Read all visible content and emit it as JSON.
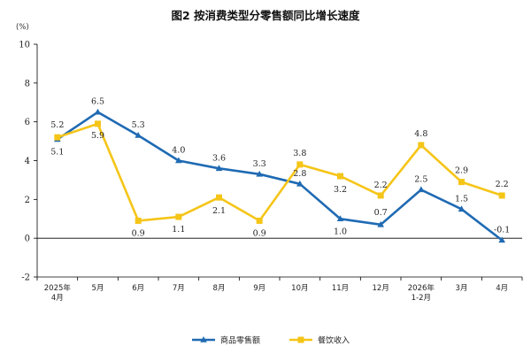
{
  "chart_data": {
    "type": "line",
    "title": "图2 按消费类型分零售额同比增长速度",
    "ylabel": "(%)",
    "xlabel": "",
    "ylim": [
      -2,
      10
    ],
    "yticks": [
      -2,
      0,
      2,
      4,
      6,
      8,
      10
    ],
    "categories": [
      [
        "2025年",
        "4月"
      ],
      [
        "5月"
      ],
      [
        "6月"
      ],
      [
        "7月"
      ],
      [
        "8月"
      ],
      [
        "9月"
      ],
      [
        "10月"
      ],
      [
        "11月"
      ],
      [
        "12月"
      ],
      [
        "2026年",
        "1-2月"
      ],
      [
        "3月"
      ],
      [
        "4月"
      ]
    ],
    "series": [
      {
        "name": "商品零售额",
        "color": "#1f6ab3",
        "marker": "triangle",
        "values": [
          5.1,
          6.5,
          5.3,
          4.0,
          3.6,
          3.3,
          2.8,
          1.0,
          0.7,
          2.5,
          1.5,
          -0.1
        ],
        "labels": [
          "5.1",
          "6.5",
          "5.3",
          "4.0",
          "3.6",
          "3.3",
          "2.8",
          "1.0",
          "0.7",
          "2.5",
          "1.5",
          "-0.1"
        ]
      },
      {
        "name": "餐饮收入",
        "color": "#f5c518",
        "marker": "square",
        "values": [
          5.2,
          5.9,
          0.9,
          1.1,
          2.1,
          0.9,
          3.8,
          3.2,
          2.2,
          4.8,
          2.9,
          2.2
        ],
        "labels": [
          "5.2",
          "5.9",
          "0.9",
          "1.1",
          "2.1",
          "0.9",
          "3.8",
          "3.2",
          "2.2",
          "4.8",
          "2.9",
          "2.2"
        ]
      }
    ],
    "grid": false,
    "legend": "bottom-center"
  }
}
